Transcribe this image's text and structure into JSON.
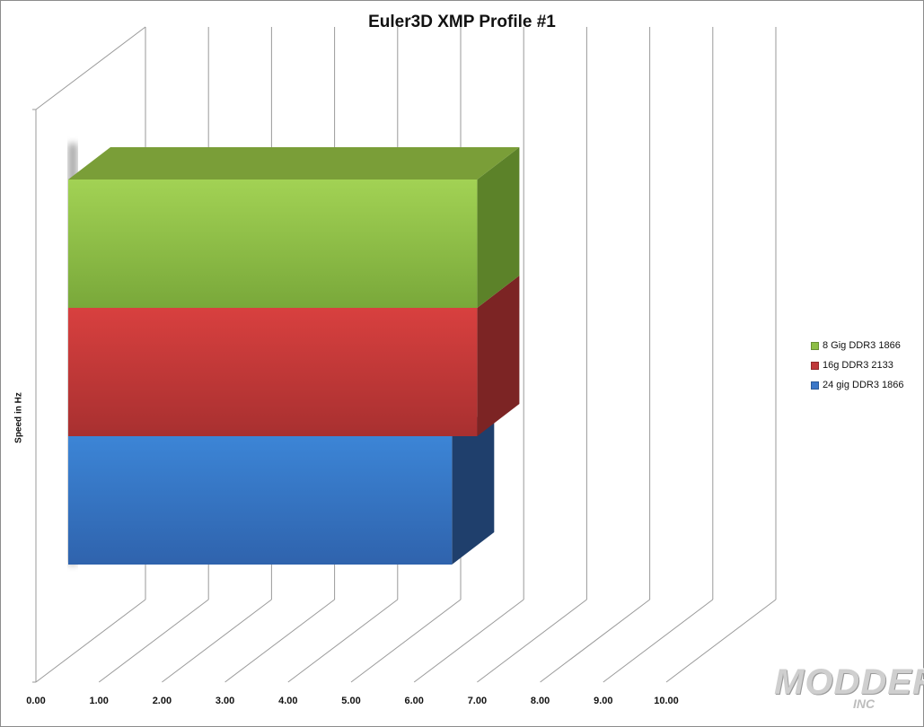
{
  "chart_data": {
    "type": "bar",
    "orientation": "horizontal",
    "style": "3d",
    "title": "Euler3D XMP Profile #1",
    "ylabel": "Speed in Hz",
    "xlabel": "",
    "xlim": [
      0,
      10
    ],
    "x_ticks": [
      "0.00",
      "1.00",
      "2.00",
      "3.00",
      "4.00",
      "5.00",
      "6.00",
      "7.00",
      "8.00",
      "9.00",
      "10.00"
    ],
    "grid": true,
    "legend_position": "right",
    "series": [
      {
        "name": "8 Gig DDR3 1866",
        "values": [
          7.0
        ],
        "color": "#8dbe45"
      },
      {
        "name": "16g DDR3 2133",
        "values": [
          7.0
        ],
        "color": "#c0393a"
      },
      {
        "name": "24 gig DDR3 1866",
        "values": [
          6.6
        ],
        "color": "#3b78c8"
      }
    ]
  },
  "watermark": {
    "main": "MODDERS",
    "sub": "INC"
  }
}
